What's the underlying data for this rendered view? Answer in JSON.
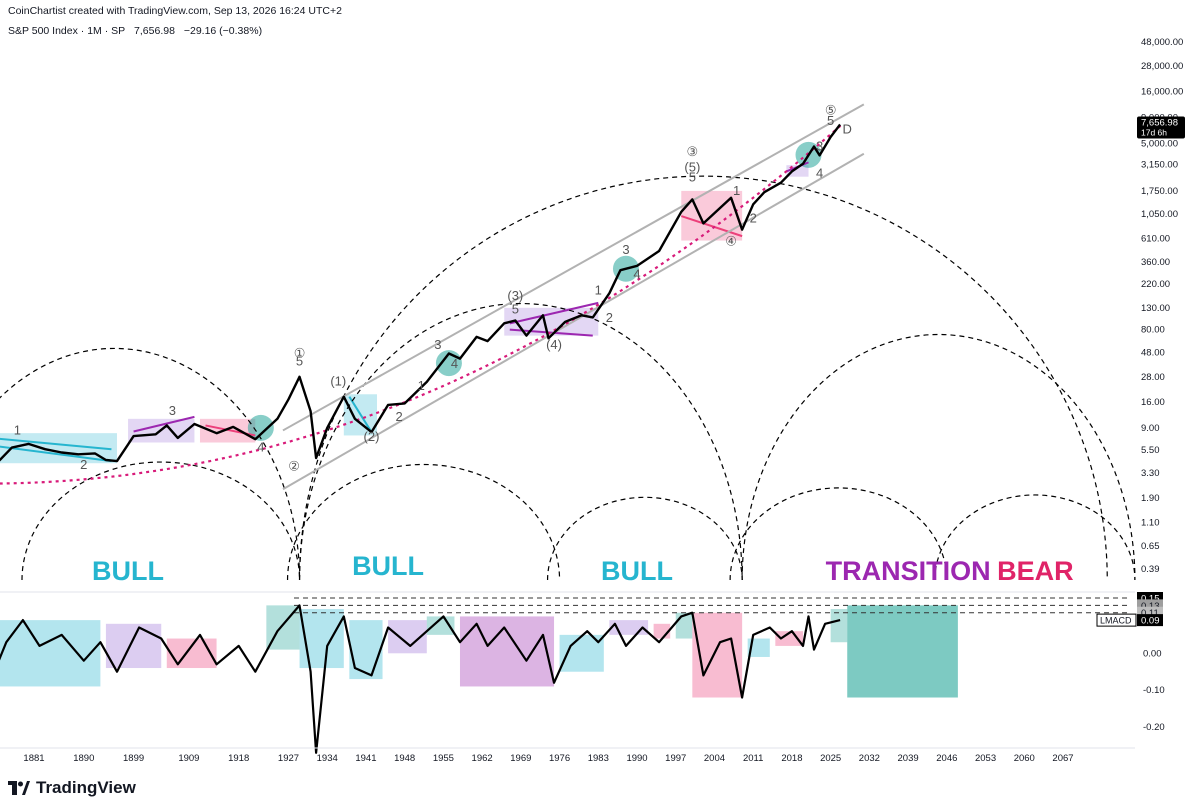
{
  "credit": "CoinChartist created with TradingView.com, Sep 13, 2026 16:24 UTC+2",
  "header": {
    "symbol": "S&P 500 Index · 1M · SP",
    "last": "7,656.98",
    "change": "−29.16 (−0.38%)"
  },
  "branding": {
    "name": "TradingView",
    "logo_icon": "tradingview-logo-icon"
  },
  "price_tag": {
    "value": "7,656.98",
    "countdown": "17d 6h"
  },
  "indicator_tag": {
    "name": "LMACD",
    "value": "0.09"
  },
  "indicator_levels": [
    "0.15",
    "0.13",
    "0.11"
  ],
  "chart_data": [
    {
      "type": "line",
      "scale": "log",
      "series": [
        {
          "values": [
            {
              "x": 1871,
              "y": 4.5
            },
            {
              "x": 1873,
              "y": 3.5
            },
            {
              "x": 1875,
              "y": 4.5
            },
            {
              "x": 1877,
              "y": 5.8
            },
            {
              "x": 1880,
              "y": 6.3
            },
            {
              "x": 1883,
              "y": 5.6
            },
            {
              "x": 1886,
              "y": 5.2
            },
            {
              "x": 1889,
              "y": 5.0
            },
            {
              "x": 1892,
              "y": 5.1
            },
            {
              "x": 1894,
              "y": 4.4
            },
            {
              "x": 1896,
              "y": 4.3
            },
            {
              "x": 1899,
              "y": 7.5
            },
            {
              "x": 1903,
              "y": 7.8
            },
            {
              "x": 1905,
              "y": 9.5
            },
            {
              "x": 1907,
              "y": 7.2
            },
            {
              "x": 1910,
              "y": 9.8
            },
            {
              "x": 1914,
              "y": 8.0
            },
            {
              "x": 1917,
              "y": 9.2
            },
            {
              "x": 1921,
              "y": 7.0
            },
            {
              "x": 1925,
              "y": 11.0
            },
            {
              "x": 1927,
              "y": 17.0
            },
            {
              "x": 1929,
              "y": 28.0
            },
            {
              "x": 1931,
              "y": 13.0
            },
            {
              "x": 1932,
              "y": 4.6
            },
            {
              "x": 1934,
              "y": 9.0
            },
            {
              "x": 1937,
              "y": 18.0
            },
            {
              "x": 1939,
              "y": 11.0
            },
            {
              "x": 1942,
              "y": 8.2
            },
            {
              "x": 1945,
              "y": 15.0
            },
            {
              "x": 1948,
              "y": 15.5
            },
            {
              "x": 1952,
              "y": 25.0
            },
            {
              "x": 1956,
              "y": 47.0
            },
            {
              "x": 1958,
              "y": 42.0
            },
            {
              "x": 1961,
              "y": 68.0
            },
            {
              "x": 1963,
              "y": 62.0
            },
            {
              "x": 1966,
              "y": 92.0
            },
            {
              "x": 1968,
              "y": 98.0
            },
            {
              "x": 1970,
              "y": 70.0
            },
            {
              "x": 1973,
              "y": 110.0
            },
            {
              "x": 1974,
              "y": 66.0
            },
            {
              "x": 1977,
              "y": 95.0
            },
            {
              "x": 1980,
              "y": 110.0
            },
            {
              "x": 1982,
              "y": 105.0
            },
            {
              "x": 1985,
              "y": 180.0
            },
            {
              "x": 1987,
              "y": 300.0
            },
            {
              "x": 1990,
              "y": 330.0
            },
            {
              "x": 1994,
              "y": 460.0
            },
            {
              "x": 1998,
              "y": 1100.0
            },
            {
              "x": 2000,
              "y": 1450.0
            },
            {
              "x": 2002,
              "y": 850.0
            },
            {
              "x": 2007,
              "y": 1500.0
            },
            {
              "x": 2009,
              "y": 740.0
            },
            {
              "x": 2011,
              "y": 1300.0
            },
            {
              "x": 2013,
              "y": 1700.0
            },
            {
              "x": 2016,
              "y": 2100.0
            },
            {
              "x": 2018,
              "y": 2700.0
            },
            {
              "x": 2020,
              "y": 3200.0
            },
            {
              "x": 2022,
              "y": 4700.0
            },
            {
              "x": 2023,
              "y": 3850.0
            },
            {
              "x": 2025,
              "y": 5800.0
            },
            {
              "x": 2026.7,
              "y": 7656.98
            }
          ]
        }
      ],
      "x_ticks": [
        "1881",
        "1890",
        "1899",
        "1909",
        "1918",
        "1927",
        "1934",
        "1941",
        "1948",
        "1955",
        "1962",
        "1969",
        "1976",
        "1983",
        "1990",
        "1997",
        "2004",
        "2011",
        "2018",
        "2025",
        "2032",
        "2039",
        "2046",
        "2053",
        "2060",
        "2067"
      ],
      "y_ticks": [
        "48,000.00",
        "28,000.00",
        "16,000.00",
        "9,000.00",
        "5,000.00",
        "3,150.00",
        "1,750.00",
        "1,050.00",
        "610.00",
        "360.00",
        "220.00",
        "130.00",
        "80.00",
        "48.00",
        "28.00",
        "16.00",
        "9.00",
        "5.50",
        "3.30",
        "1.90",
        "1.10",
        "0.65",
        "0.39"
      ],
      "regime_labels": [
        {
          "text": "BULL",
          "color": "#26b5cf"
        },
        {
          "text": "BULL",
          "color": "#26b5cf"
        },
        {
          "text": "BULL",
          "color": "#26b5cf"
        },
        {
          "text": "TRANSITION",
          "color": "#9c27b0"
        },
        {
          "text": "BEAR",
          "color": "#e02468"
        }
      ],
      "wave_labels": [
        "1",
        "2",
        "3",
        "4",
        "①",
        "5",
        "②",
        "(1)",
        "(2)",
        "1",
        "2",
        "3",
        "4",
        "(3)",
        "5",
        "(4)",
        "1",
        "2",
        "3",
        "4",
        "③",
        "(5)",
        "5",
        "1",
        "2",
        "④",
        "3",
        "4",
        "⑤",
        "5",
        "D"
      ],
      "colors": {
        "price": "#000000",
        "channel": "#b2b2b2",
        "trend": "#d81b7a",
        "cycle": "#000000",
        "cyan": "#26b5cf",
        "purple": "#9c27b0",
        "pink": "#ec407a",
        "teal": "#26a69a"
      }
    },
    {
      "type": "line",
      "y_ticks": [
        "0.15",
        "0.13",
        "0.11",
        "0.09",
        "0.00",
        "-0.10",
        "-0.20"
      ],
      "series": [
        {
          "name": "LMACD",
          "values": [
            {
              "x": 1871,
              "y": 0.0
            },
            {
              "x": 1873,
              "y": -0.08
            },
            {
              "x": 1876,
              "y": 0.03
            },
            {
              "x": 1879,
              "y": 0.09
            },
            {
              "x": 1882,
              "y": 0.02
            },
            {
              "x": 1886,
              "y": 0.05
            },
            {
              "x": 1890,
              "y": -0.02
            },
            {
              "x": 1893,
              "y": 0.03
            },
            {
              "x": 1896,
              "y": -0.05
            },
            {
              "x": 1900,
              "y": 0.07
            },
            {
              "x": 1904,
              "y": 0.04
            },
            {
              "x": 1907,
              "y": -0.03
            },
            {
              "x": 1911,
              "y": 0.05
            },
            {
              "x": 1914,
              "y": -0.03
            },
            {
              "x": 1918,
              "y": 0.02
            },
            {
              "x": 1921,
              "y": -0.05
            },
            {
              "x": 1925,
              "y": 0.06
            },
            {
              "x": 1929,
              "y": 0.13
            },
            {
              "x": 1931,
              "y": -0.05
            },
            {
              "x": 1932,
              "y": -0.27
            },
            {
              "x": 1934,
              "y": 0.02
            },
            {
              "x": 1937,
              "y": 0.1
            },
            {
              "x": 1939,
              "y": -0.04
            },
            {
              "x": 1942,
              "y": -0.06
            },
            {
              "x": 1945,
              "y": 0.07
            },
            {
              "x": 1949,
              "y": 0.02
            },
            {
              "x": 1952,
              "y": 0.06
            },
            {
              "x": 1955,
              "y": 0.1
            },
            {
              "x": 1958,
              "y": 0.03
            },
            {
              "x": 1961,
              "y": 0.08
            },
            {
              "x": 1963,
              "y": 0.02
            },
            {
              "x": 1966,
              "y": 0.07
            },
            {
              "x": 1970,
              "y": -0.02
            },
            {
              "x": 1973,
              "y": 0.05
            },
            {
              "x": 1975,
              "y": -0.08
            },
            {
              "x": 1978,
              "y": 0.02
            },
            {
              "x": 1981,
              "y": 0.06
            },
            {
              "x": 1983,
              "y": 0.03
            },
            {
              "x": 1986,
              "y": 0.08
            },
            {
              "x": 1988,
              "y": 0.02
            },
            {
              "x": 1991,
              "y": 0.07
            },
            {
              "x": 1994,
              "y": 0.03
            },
            {
              "x": 1998,
              "y": 0.1
            },
            {
              "x": 2000,
              "y": 0.11
            },
            {
              "x": 2002,
              "y": -0.06
            },
            {
              "x": 2005,
              "y": 0.03
            },
            {
              "x": 2007,
              "y": 0.04
            },
            {
              "x": 2009,
              "y": -0.12
            },
            {
              "x": 2011,
              "y": 0.05
            },
            {
              "x": 2014,
              "y": 0.07
            },
            {
              "x": 2016,
              "y": 0.04
            },
            {
              "x": 2018,
              "y": 0.06
            },
            {
              "x": 2020,
              "y": 0.02
            },
            {
              "x": 2021,
              "y": 0.1
            },
            {
              "x": 2022,
              "y": 0.01
            },
            {
              "x": 2024,
              "y": 0.08
            },
            {
              "x": 2026.7,
              "y": 0.09
            }
          ]
        }
      ],
      "colors": {
        "line": "#000000"
      }
    }
  ]
}
